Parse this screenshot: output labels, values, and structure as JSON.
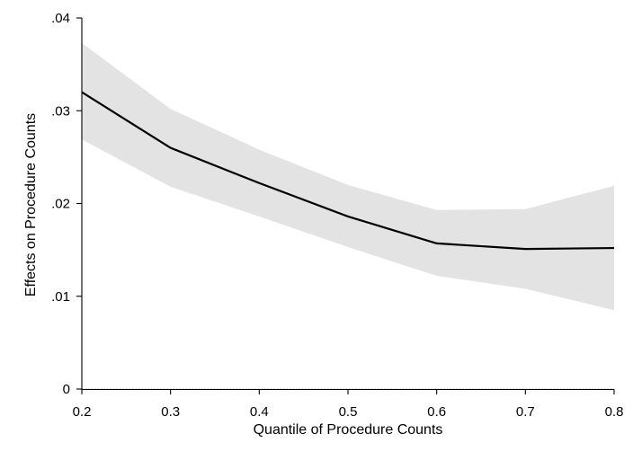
{
  "chart_data": {
    "type": "line",
    "title": "",
    "xlabel": "Quantile of Procedure Counts",
    "ylabel": "Effects on Procedure Counts",
    "xlim": [
      0.2,
      0.8
    ],
    "ylim": [
      0,
      0.04
    ],
    "x_ticks": [
      {
        "value": 0.2,
        "label": "0.2"
      },
      {
        "value": 0.3,
        "label": "0.3"
      },
      {
        "value": 0.4,
        "label": "0.4"
      },
      {
        "value": 0.5,
        "label": "0.5"
      },
      {
        "value": 0.6,
        "label": "0.6"
      },
      {
        "value": 0.7,
        "label": "0.7"
      },
      {
        "value": 0.8,
        "label": "0.8"
      }
    ],
    "y_ticks": [
      {
        "value": 0,
        "label": "0"
      },
      {
        "value": 0.01,
        "label": ".01"
      },
      {
        "value": 0.02,
        "label": ".02"
      },
      {
        "value": 0.03,
        "label": ".03"
      },
      {
        "value": 0.04,
        "label": ".04"
      }
    ],
    "grid": false,
    "series": [
      {
        "x": [
          0.2,
          0.3,
          0.4,
          0.5,
          0.6,
          0.7,
          0.8
        ],
        "y": [
          0.032,
          0.026,
          0.0222,
          0.0186,
          0.0157,
          0.0151,
          0.0152
        ],
        "ci_lower": [
          0.0269,
          0.0218,
          0.0186,
          0.0153,
          0.0122,
          0.0108,
          0.0085
        ],
        "ci_upper": [
          0.0373,
          0.0302,
          0.0258,
          0.022,
          0.0193,
          0.0194,
          0.0219
        ],
        "color": "#000000",
        "ci_color": "#e3e3e3"
      }
    ],
    "reference_line": {
      "y": 0,
      "style": "dotted",
      "color": "#bbbbbb"
    }
  }
}
